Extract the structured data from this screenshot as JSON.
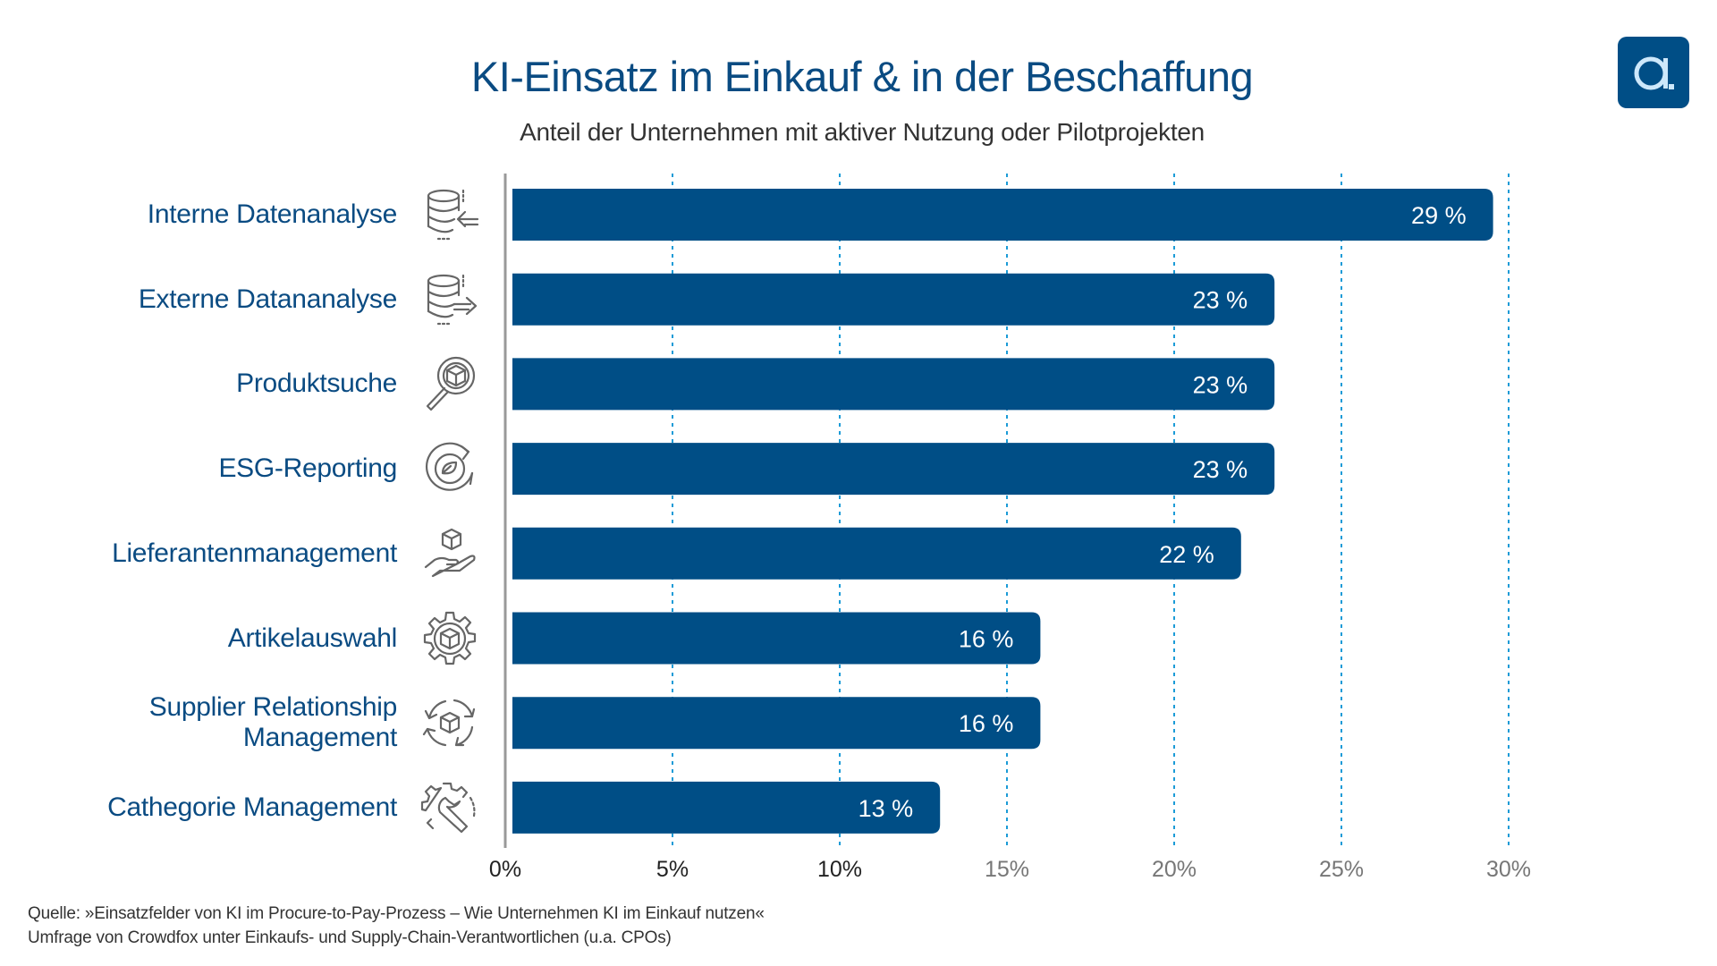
{
  "title": "KI-Einsatz im Einkauf & in der Beschaffung",
  "subtitle": "Anteil der Unternehmen mit aktiver Nutzung oder Pilotprojekten",
  "logo": {
    "letter": "a",
    "background": "#004e86",
    "foreground": "#cde8fb"
  },
  "chart_data": {
    "type": "bar",
    "orientation": "horizontal",
    "categories": [
      "Interne Datenanalyse",
      "Externe Datananalyse",
      "Produktsuche",
      "ESG-Reporting",
      "Lieferantenmanagement",
      "Artikelauswahl",
      "Supplier Relationship Management",
      "Cathegorie Management"
    ],
    "category_lines": [
      [
        "Interne Datenanalyse"
      ],
      [
        "Externe Datananalyse"
      ],
      [
        "Produktsuche"
      ],
      [
        "ESG-Reporting"
      ],
      [
        "Lieferantenmanagement"
      ],
      [
        "Artikelauswahl"
      ],
      [
        "Supplier Relationship",
        "Management"
      ],
      [
        "Cathegorie Management"
      ]
    ],
    "category_icons": [
      "database-import-icon",
      "database-export-icon",
      "magnifier-box-icon",
      "recycle-leaf-icon",
      "hand-box-icon",
      "gear-box-icon",
      "cycle-box-icon",
      "gear-wrench-icon"
    ],
    "values": [
      29,
      23,
      23,
      23,
      22,
      16,
      16,
      13
    ],
    "data_labels": [
      "29 %",
      "23 %",
      "23 %",
      "23 %",
      "22 %",
      "16 %",
      "16 %",
      "13 %"
    ],
    "xlim": [
      0,
      30
    ],
    "xticks": [
      0,
      5,
      10,
      15,
      20,
      25,
      30
    ],
    "xtick_labels": [
      "0%",
      "5%",
      "10%",
      "15%",
      "20%",
      "25%",
      "30%"
    ],
    "grid": "vertical dotted",
    "bar_color": "#004e86",
    "grid_color": "#1b9bd7",
    "legend": "none"
  },
  "source": {
    "line1": "Quelle: »Einsatzfelder von KI im Procure-to-Pay-Prozess – Wie Unternehmen KI im Einkauf nutzen«",
    "line2": "Umfrage von Crowdfox unter Einkaufs- und Supply-Chain-Verantwortlichen (u.a. CPOs)"
  }
}
